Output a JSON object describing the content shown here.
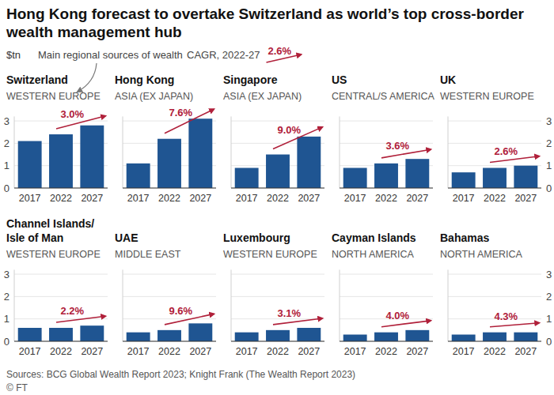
{
  "title": "Hong Kong forecast to overtake Switzerland as world’s top cross-border wealth management hub",
  "unit": "$tn",
  "key": {
    "region": "Main regional sources of wealth",
    "cagr": "CAGR, 2022-27",
    "cagr_example": "2.6%"
  },
  "source": "Sources: BCG Global Wealth Report 2023; Knight Frank (The Wealth Report 2023)",
  "credit": "© FT",
  "chart_data": [
    {
      "type": "bar",
      "title": "Switzerland",
      "subtitle": "WESTERN EUROPE",
      "annotation": "3.0%",
      "categories": [
        "2017",
        "2022",
        "2027"
      ],
      "values": [
        2.1,
        2.4,
        2.8
      ],
      "color": "#1f5592",
      "ylim": [
        0,
        3.2
      ],
      "yticks": [
        0,
        1,
        2,
        3
      ],
      "grid": true
    },
    {
      "type": "bar",
      "title": "Hong Kong",
      "subtitle": "ASIA (EX JAPAN)",
      "annotation": "7.6%",
      "categories": [
        "2017",
        "2022",
        "2027"
      ],
      "values": [
        1.1,
        2.2,
        3.1
      ],
      "color": "#1f5592",
      "ylim": [
        0,
        3.2
      ],
      "yticks": [
        0,
        1,
        2,
        3
      ],
      "grid": true,
      "tick_labels": "x"
    },
    {
      "type": "bar",
      "title": "Singapore",
      "subtitle": "ASIA (EX JAPAN)",
      "annotation": "9.0%",
      "categories": [
        "2017",
        "2022",
        "2027"
      ],
      "values": [
        0.9,
        1.5,
        2.3
      ],
      "color": "#1f5592",
      "ylim": [
        0,
        3.2
      ],
      "yticks": [
        0,
        1,
        2,
        3
      ],
      "grid": true,
      "tick_labels": "x"
    },
    {
      "type": "bar",
      "title": "US",
      "subtitle": "CENTRAL/S AMERICA",
      "annotation": "3.6%",
      "categories": [
        "2017",
        "2022",
        "2027"
      ],
      "values": [
        0.9,
        1.1,
        1.3
      ],
      "color": "#1f5592",
      "ylim": [
        0,
        3.2
      ],
      "yticks": [
        0,
        1,
        2,
        3
      ],
      "grid": true,
      "tick_labels": "x"
    },
    {
      "type": "bar",
      "title": "UK",
      "subtitle": "WESTERN EUROPE",
      "annotation": "2.6%",
      "categories": [
        "2017",
        "2022",
        "2027"
      ],
      "values": [
        0.7,
        0.9,
        1.0
      ],
      "color": "#1f5592",
      "ylim": [
        0,
        3.2
      ],
      "yticks": [
        0,
        1,
        2,
        3
      ],
      "grid": true
    },
    {
      "type": "bar",
      "title": "Channel Islands/\nIsle of Man",
      "subtitle": "WESTERN EUROPE",
      "annotation": "2.2%",
      "categories": [
        "2017",
        "2022",
        "2027"
      ],
      "values": [
        0.6,
        0.6,
        0.7
      ],
      "color": "#1f5592",
      "ylim": [
        0,
        3.2
      ],
      "yticks": [
        0,
        1,
        2,
        3
      ],
      "grid": true
    },
    {
      "type": "bar",
      "title": "UAE",
      "subtitle": "MIDDLE EAST",
      "annotation": "9.6%",
      "categories": [
        "2017",
        "2022",
        "2027"
      ],
      "values": [
        0.4,
        0.5,
        0.8
      ],
      "color": "#1f5592",
      "ylim": [
        0,
        3.2
      ],
      "yticks": [
        0,
        1,
        2,
        3
      ],
      "grid": true,
      "tick_labels": "x"
    },
    {
      "type": "bar",
      "title": "Luxembourg",
      "subtitle": "WESTERN EUROPE",
      "annotation": "3.1%",
      "categories": [
        "2017",
        "2022",
        "2027"
      ],
      "values": [
        0.4,
        0.5,
        0.6
      ],
      "color": "#1f5592",
      "ylim": [
        0,
        3.2
      ],
      "yticks": [
        0,
        1,
        2,
        3
      ],
      "grid": true,
      "tick_labels": "x"
    },
    {
      "type": "bar",
      "title": "Cayman Islands",
      "subtitle": "NORTH AMERICA",
      "annotation": "4.0%",
      "categories": [
        "2017",
        "2022",
        "2027"
      ],
      "values": [
        0.3,
        0.4,
        0.5
      ],
      "color": "#1f5592",
      "ylim": [
        0,
        3.2
      ],
      "yticks": [
        0,
        1,
        2,
        3
      ],
      "grid": true,
      "tick_labels": "x"
    },
    {
      "type": "bar",
      "title": "Bahamas",
      "subtitle": "NORTH AMERICA",
      "annotation": "4.3%",
      "categories": [
        "2017",
        "2022",
        "2027"
      ],
      "values": [
        0.3,
        0.4,
        0.4
      ],
      "color": "#1f5592",
      "ylim": [
        0,
        3.2
      ],
      "yticks": [
        0,
        1,
        2,
        3
      ],
      "grid": true
    }
  ]
}
